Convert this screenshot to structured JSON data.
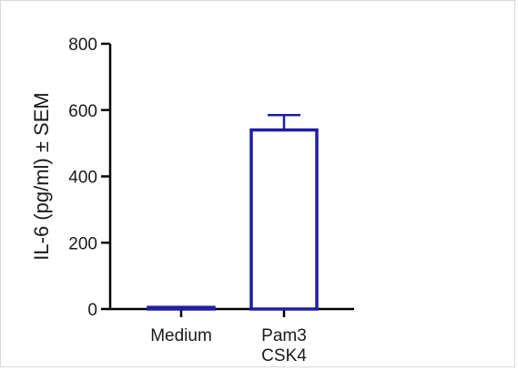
{
  "chart_data": {
    "type": "bar",
    "ylabel": "IL-6 (pg/ml) ± SEM",
    "xlabel": "",
    "ylim": [
      0,
      800
    ],
    "yticks": [
      "0",
      "200",
      "400",
      "600",
      "800"
    ],
    "categories": [
      {
        "lines": [
          "Medium"
        ]
      },
      {
        "lines": [
          "Pam3",
          "CSK4"
        ]
      }
    ],
    "values": [
      5,
      540
    ],
    "errors": [
      0,
      45
    ],
    "grid": false,
    "bar_fill": "#ffffff",
    "bar_edge_color": "#1f1fa0",
    "axis_color": "#000000"
  }
}
